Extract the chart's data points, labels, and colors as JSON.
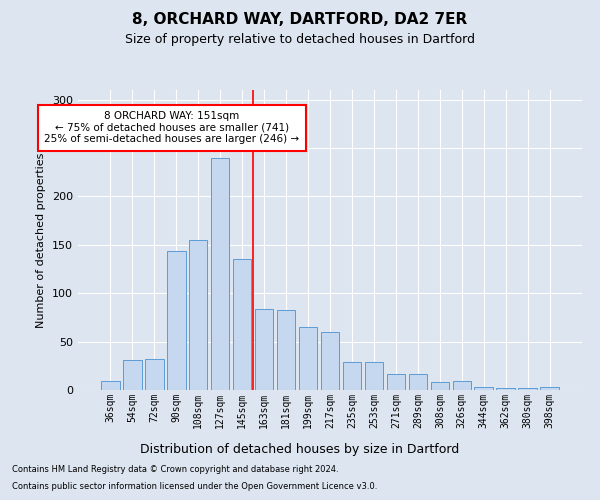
{
  "title": "8, ORCHARD WAY, DARTFORD, DA2 7ER",
  "subtitle": "Size of property relative to detached houses in Dartford",
  "xlabel": "Distribution of detached houses by size in Dartford",
  "ylabel": "Number of detached properties",
  "categories": [
    "36sqm",
    "54sqm",
    "72sqm",
    "90sqm",
    "108sqm",
    "127sqm",
    "145sqm",
    "163sqm",
    "181sqm",
    "199sqm",
    "217sqm",
    "235sqm",
    "253sqm",
    "271sqm",
    "289sqm",
    "308sqm",
    "326sqm",
    "344sqm",
    "362sqm",
    "380sqm",
    "398sqm"
  ],
  "values": [
    9,
    31,
    32,
    144,
    155,
    240,
    135,
    84,
    83,
    65,
    60,
    29,
    29,
    17,
    17,
    8,
    9,
    3,
    2,
    2,
    3
  ],
  "bar_color": "#c5d8f0",
  "bar_edge_color": "#5b9bd5",
  "background_color": "#dde6f0",
  "grid_color": "#ffffff",
  "vline_x_index": 6.5,
  "vline_color": "red",
  "annotation_text": "8 ORCHARD WAY: 151sqm\n← 75% of detached houses are smaller (741)\n25% of semi-detached houses are larger (246) →",
  "annotation_box_color": "white",
  "annotation_box_edge_color": "red",
  "ylim": [
    0,
    310
  ],
  "yticks": [
    0,
    50,
    100,
    150,
    200,
    250,
    300
  ],
  "footer_line1": "Contains HM Land Registry data © Crown copyright and database right 2024.",
  "footer_line2": "Contains public sector information licensed under the Open Government Licence v3.0."
}
